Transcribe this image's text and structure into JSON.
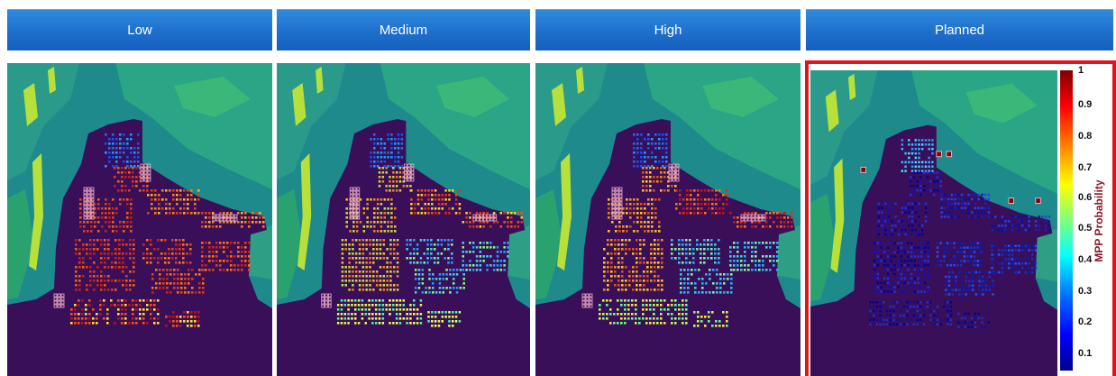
{
  "panels": [
    {
      "title": "Low"
    },
    {
      "title": "Medium"
    },
    {
      "title": "High"
    },
    {
      "title": "Planned"
    }
  ],
  "colorbar": {
    "label": "MPP Probability",
    "ticks": [
      "1",
      "0.9",
      "0.8",
      "0.7",
      "0.6",
      "0.5",
      "0.4",
      "0.3",
      "0.2",
      "0.1"
    ]
  },
  "colors": {
    "header": "#1e6fcc",
    "highlight_frame": "#e1141c",
    "background_land": "#1f8a8c",
    "developed_area": "#3a0f5a"
  }
}
